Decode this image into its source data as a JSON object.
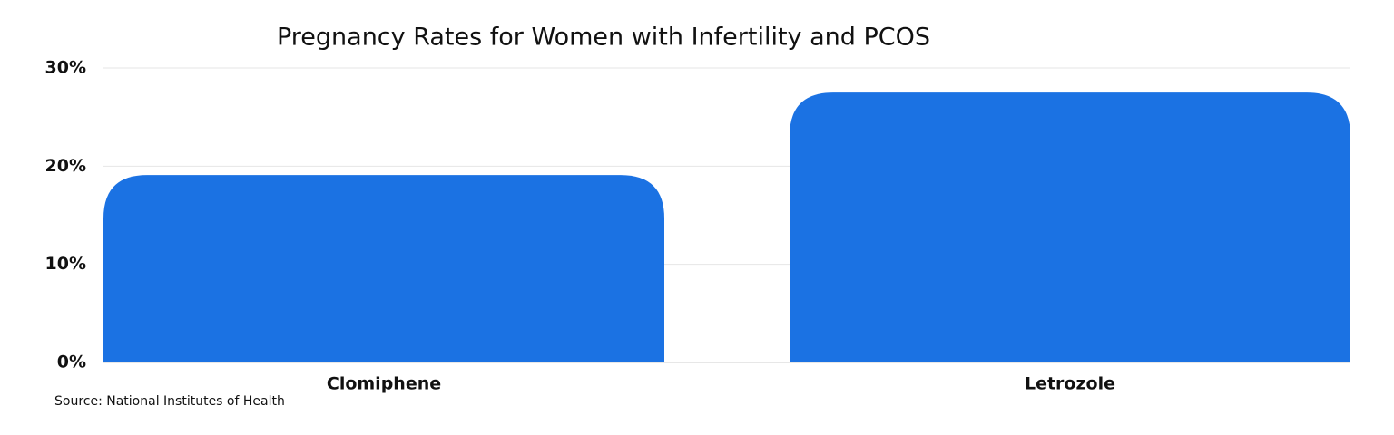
{
  "chart_data": {
    "type": "bar",
    "title": "Pregnancy Rates for Women with Infertility and PCOS",
    "categories": [
      "Clomiphene",
      "Letrozole"
    ],
    "values": [
      19.1,
      27.5
    ],
    "color": "#1b72e3",
    "ylim": [
      0,
      30
    ],
    "yticks": [
      {
        "value": 0,
        "label": "0%"
      },
      {
        "value": 10,
        "label": "10%"
      },
      {
        "value": 20,
        "label": "20%"
      },
      {
        "value": 30,
        "label": "30%"
      }
    ],
    "grid": true,
    "source": "Source: National Institutes of Health"
  }
}
